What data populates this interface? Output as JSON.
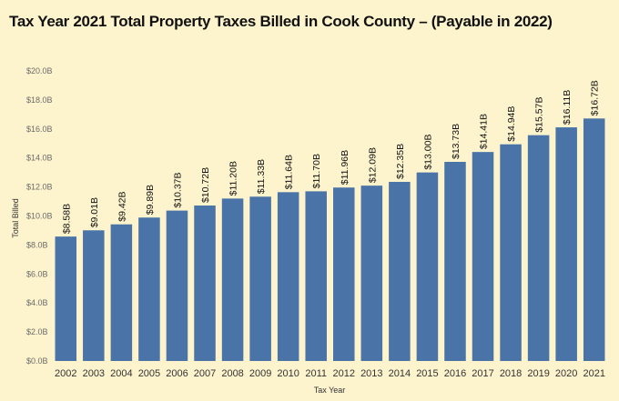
{
  "chart_data": {
    "type": "bar",
    "title": "Tax Year 2021 Total Property Taxes Billed in Cook County – (Payable in 2022)",
    "xlabel": "Tax Year",
    "ylabel": "Total Billed",
    "ylim": [
      0,
      20
    ],
    "yticks": [
      "$0.0B",
      "$2.0B",
      "$4.0B",
      "$6.0B",
      "$8.0B",
      "$10.0B",
      "$12.0B",
      "$14.0B",
      "$16.0B",
      "$18.0B",
      "$20.0B"
    ],
    "grid": false,
    "bar_color": "#4a74a8",
    "categories": [
      "2002",
      "2003",
      "2004",
      "2005",
      "2006",
      "2007",
      "2008",
      "2009",
      "2010",
      "2011",
      "2012",
      "2013",
      "2014",
      "2015",
      "2016",
      "2017",
      "2018",
      "2019",
      "2020",
      "2021"
    ],
    "values": [
      8.58,
      9.01,
      9.42,
      9.89,
      10.37,
      10.72,
      11.2,
      11.33,
      11.64,
      11.7,
      11.96,
      12.09,
      12.35,
      13.0,
      13.73,
      14.41,
      14.94,
      15.57,
      16.11,
      16.72
    ],
    "data_labels": [
      "$8.58B",
      "$9.01B",
      "$9.42B",
      "$9.89B",
      "$10.37B",
      "$10.72B",
      "$11.20B",
      "$11.33B",
      "$11.64B",
      "$11.70B",
      "$11.96B",
      "$12.09B",
      "$12.35B",
      "$13.00B",
      "$13.73B",
      "$14.41B",
      "$14.94B",
      "$15.57B",
      "$16.11B",
      "$16.72B"
    ]
  }
}
